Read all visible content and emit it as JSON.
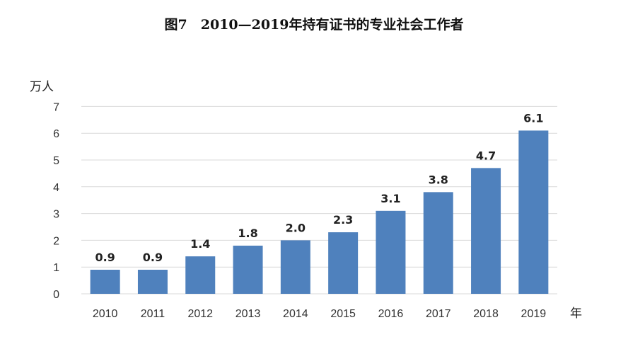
{
  "chart_data": {
    "type": "bar",
    "title": "图7　2010—2019年持有证书的专业社会工作者",
    "ylabel": "万人",
    "xlabel": "年",
    "categories": [
      "2010",
      "2011",
      "2012",
      "2013",
      "2014",
      "2015",
      "2016",
      "2017",
      "2018",
      "2019"
    ],
    "values": [
      0.9,
      0.9,
      1.4,
      1.8,
      2.0,
      2.3,
      3.1,
      3.8,
      4.7,
      6.1
    ],
    "data_labels": [
      "0.9",
      "0.9",
      "1.4",
      "1.8",
      "2.0",
      "2.3",
      "3.1",
      "3.8",
      "4.7",
      "6.1"
    ],
    "yticks": [
      0,
      1,
      2,
      3,
      4,
      5,
      6,
      7
    ],
    "ylim": [
      0,
      7
    ],
    "grid": true,
    "bar_color": "#4f81bd",
    "grid_color": "#d9d9d9"
  }
}
